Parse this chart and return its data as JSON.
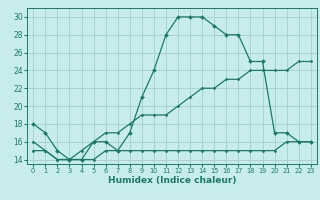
{
  "title": "",
  "xlabel": "Humidex (Indice chaleur)",
  "background_color": "#c8ecec",
  "grid_color": "#a0d0d0",
  "line_color": "#1a7a6a",
  "xlim": [
    -0.5,
    23.5
  ],
  "ylim": [
    13.5,
    31
  ],
  "xticks": [
    0,
    1,
    2,
    3,
    4,
    5,
    6,
    7,
    8,
    9,
    10,
    11,
    12,
    13,
    14,
    15,
    16,
    17,
    18,
    19,
    20,
    21,
    22,
    23
  ],
  "yticks": [
    14,
    16,
    18,
    20,
    22,
    24,
    26,
    28,
    30
  ],
  "curve1_x": [
    0,
    1,
    2,
    3,
    4,
    5,
    6,
    7,
    8,
    9,
    10,
    11,
    12,
    13,
    14,
    15,
    16,
    17,
    18,
    19,
    20,
    21,
    22,
    23
  ],
  "curve1_y": [
    18,
    17,
    15,
    14,
    14,
    16,
    16,
    15,
    17,
    21,
    24,
    28,
    30,
    30,
    30,
    29,
    28,
    28,
    25,
    25,
    17,
    17,
    16,
    16
  ],
  "curve2_x": [
    0,
    1,
    2,
    3,
    4,
    5,
    6,
    7,
    8,
    9,
    10,
    11,
    12,
    13,
    14,
    15,
    16,
    17,
    18,
    19,
    20,
    21,
    22,
    23
  ],
  "curve2_y": [
    16,
    15,
    14,
    14,
    15,
    16,
    17,
    17,
    18,
    19,
    19,
    19,
    20,
    21,
    22,
    22,
    23,
    23,
    24,
    24,
    24,
    24,
    25,
    25
  ],
  "curve3_x": [
    0,
    1,
    2,
    3,
    4,
    5,
    6,
    7,
    8,
    9,
    10,
    11,
    12,
    13,
    14,
    15,
    16,
    17,
    18,
    19,
    20,
    21,
    22,
    23
  ],
  "curve3_y": [
    15,
    15,
    14,
    14,
    14,
    14,
    15,
    15,
    15,
    15,
    15,
    15,
    15,
    15,
    15,
    15,
    15,
    15,
    15,
    15,
    15,
    16,
    16,
    16
  ],
  "xlabel_fontsize": 6.5,
  "tick_fontsize": 5.0
}
